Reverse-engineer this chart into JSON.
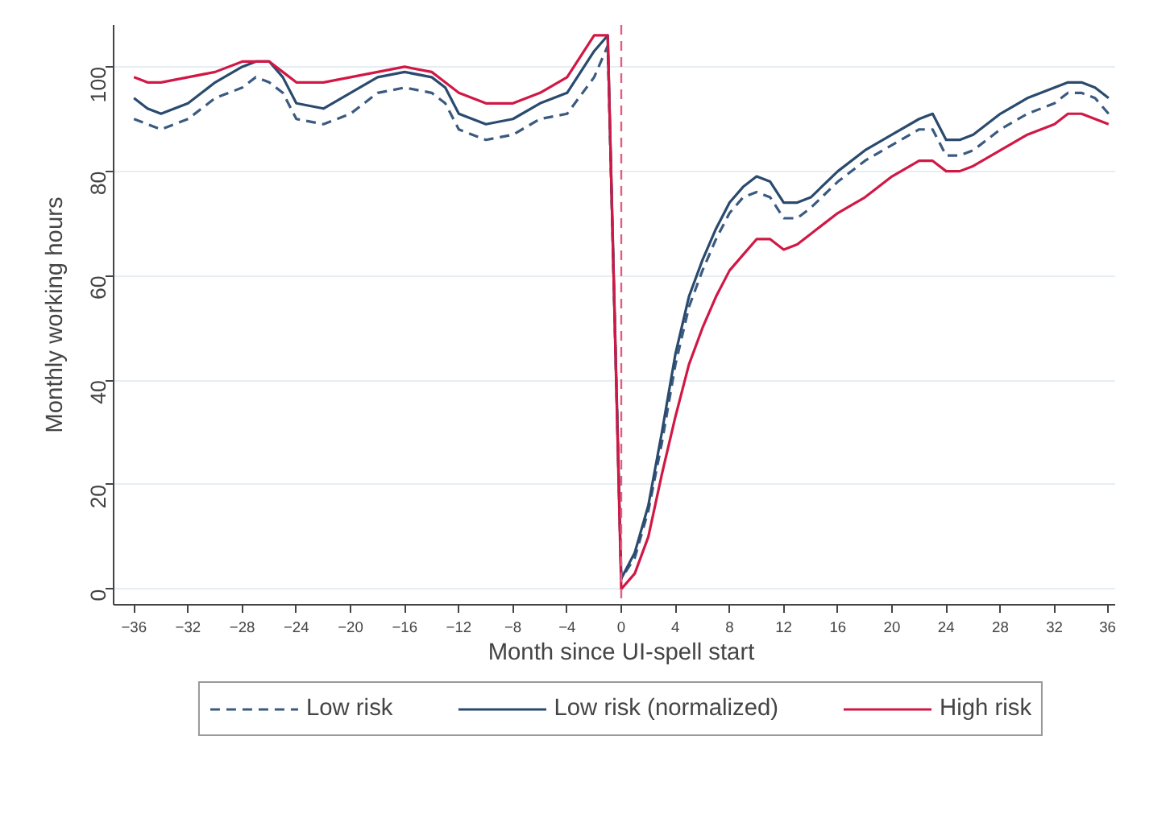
{
  "chart_data": {
    "type": "line",
    "xlabel": "Month since UI-spell start",
    "ylabel": "Monthly working hours",
    "x": [
      -36,
      -35,
      -34,
      -32,
      -30,
      -28,
      -27,
      -26,
      -25,
      -24,
      -22,
      -20,
      -18,
      -16,
      -14,
      -13,
      -12,
      -10,
      -8,
      -6,
      -4,
      -2,
      -1,
      0,
      1,
      2,
      3,
      4,
      5,
      6,
      7,
      8,
      9,
      10,
      11,
      12,
      13,
      14,
      16,
      18,
      20,
      22,
      23,
      24,
      25,
      26,
      28,
      30,
      32,
      33,
      34,
      35,
      36
    ],
    "series": [
      {
        "name": "Low risk",
        "color": "#3b5a80",
        "line_style": "dashed",
        "values": [
          90,
          89,
          88,
          90,
          94,
          96,
          98,
          97,
          95,
          90,
          89,
          91,
          95,
          96,
          95,
          93,
          88,
          86,
          87,
          90,
          91,
          98,
          104,
          2,
          6,
          15,
          28,
          43,
          54,
          61,
          67,
          72,
          75,
          76,
          75,
          71,
          71,
          73,
          78,
          82,
          85,
          88,
          88,
          83,
          83,
          84,
          88,
          91,
          93,
          95,
          95,
          94,
          91
        ]
      },
      {
        "name": "Low risk (normalized)",
        "color": "#2a4a6e",
        "line_style": "solid",
        "values": [
          94,
          92,
          91,
          93,
          97,
          100,
          101,
          101,
          98,
          93,
          92,
          95,
          98,
          99,
          98,
          96,
          91,
          89,
          90,
          93,
          95,
          103,
          106,
          2,
          7,
          16,
          30,
          45,
          56,
          63,
          69,
          74,
          77,
          79,
          78,
          74,
          74,
          75,
          80,
          84,
          87,
          90,
          91,
          86,
          86,
          87,
          91,
          94,
          96,
          97,
          97,
          96,
          94
        ]
      },
      {
        "name": "High risk",
        "color": "#d11845",
        "line_style": "solid",
        "values": [
          98,
          97,
          97,
          98,
          99,
          101,
          101,
          101,
          99,
          97,
          97,
          98,
          99,
          100,
          99,
          97,
          95,
          93,
          93,
          95,
          98,
          106,
          106,
          0,
          3,
          10,
          22,
          33,
          43,
          50,
          56,
          61,
          64,
          67,
          67,
          65,
          66,
          68,
          72,
          75,
          79,
          82,
          82,
          80,
          80,
          81,
          84,
          87,
          89,
          91,
          91,
          90,
          89
        ]
      }
    ],
    "xlim": [
      -37.5,
      37.5
    ],
    "ylim": [
      -3,
      108
    ],
    "xticks": [
      -36,
      -32,
      -28,
      -24,
      -20,
      -16,
      -12,
      -8,
      -4,
      0,
      4,
      8,
      12,
      16,
      20,
      24,
      28,
      32,
      36
    ],
    "yticks": [
      0,
      20,
      40,
      60,
      80,
      100
    ],
    "ref_lines": [
      {
        "axis": "x",
        "value": 0,
        "color": "#e06080",
        "line_style": "dashed"
      }
    ],
    "grid": "y",
    "legend": "bottom"
  }
}
